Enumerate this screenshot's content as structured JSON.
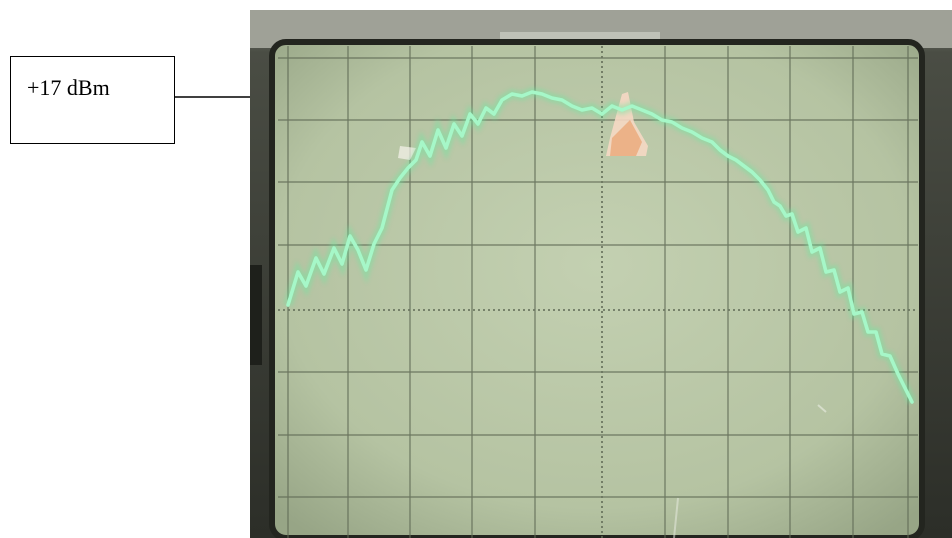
{
  "annotation": {
    "label": "+17 dBm"
  },
  "photo": {
    "subject": "oscilloscope-screen",
    "trace_color": "#8ff0b6",
    "screen_color": "#b8c7a4",
    "bezel_color": "#3a3d33"
  }
}
